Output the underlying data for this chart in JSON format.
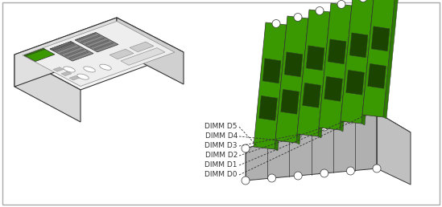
{
  "background_color": "#ffffff",
  "border_color": "#aaaaaa",
  "dimm_labels": [
    "DIMM D5",
    "DIMM D4",
    "DIMM D3",
    "DIMM D2",
    "DIMM D1",
    "DIMM D0"
  ],
  "green_dark": "#2d7a00",
  "green_mid": "#3a9900",
  "green_light": "#4db300",
  "chip_dark": "#1a4400",
  "dark": "#333333",
  "mid_gray": "#888888",
  "light_gray": "#cccccc",
  "lighter_gray": "#e0e0e0",
  "white": "#ffffff",
  "text_fontsize": 6.5,
  "figsize": [
    5.49,
    2.58
  ],
  "dpi": 100
}
